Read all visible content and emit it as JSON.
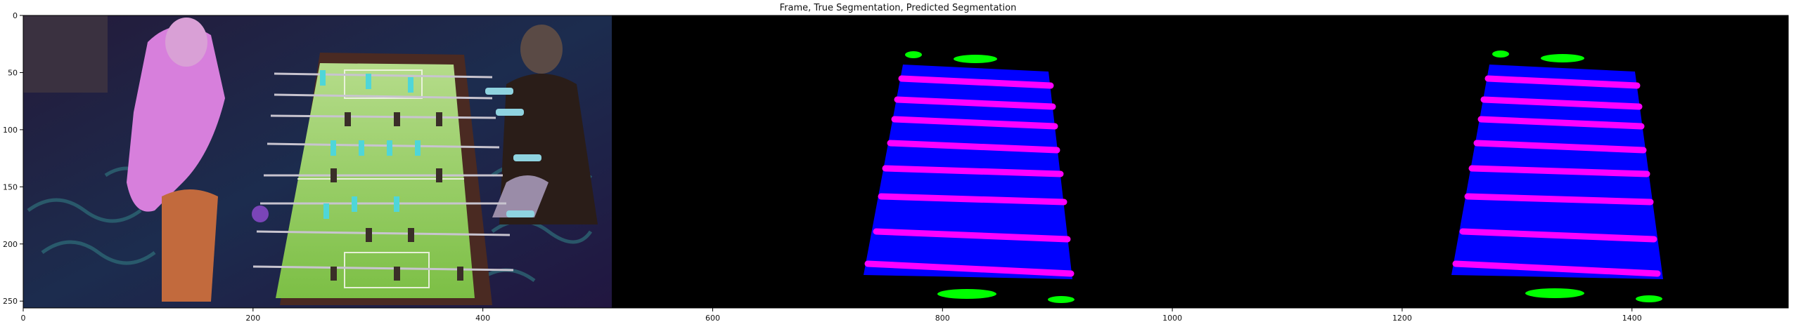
{
  "chart_data": {
    "type": "image",
    "title": "Frame, True Segmentation, Predicted Segmentation",
    "xlabel": "",
    "ylabel": "",
    "xlim": [
      0,
      1536
    ],
    "ylim": [
      256,
      0
    ],
    "x_ticks": [
      0,
      200,
      400,
      600,
      800,
      1000,
      1200,
      1400
    ],
    "y_ticks": [
      0,
      50,
      100,
      150,
      200,
      250
    ],
    "panels": [
      {
        "name": "Frame",
        "x_range": [
          0,
          512
        ]
      },
      {
        "name": "True Segmentation",
        "x_range": [
          512,
          1024
        ]
      },
      {
        "name": "Predicted Segmentation",
        "x_range": [
          1024,
          1536
        ]
      }
    ],
    "segmentation_classes": [
      {
        "name": "table",
        "color": "#0000ff"
      },
      {
        "name": "rods",
        "color": "#ff00ff"
      },
      {
        "name": "handles",
        "color": "#00ff00"
      }
    ]
  }
}
